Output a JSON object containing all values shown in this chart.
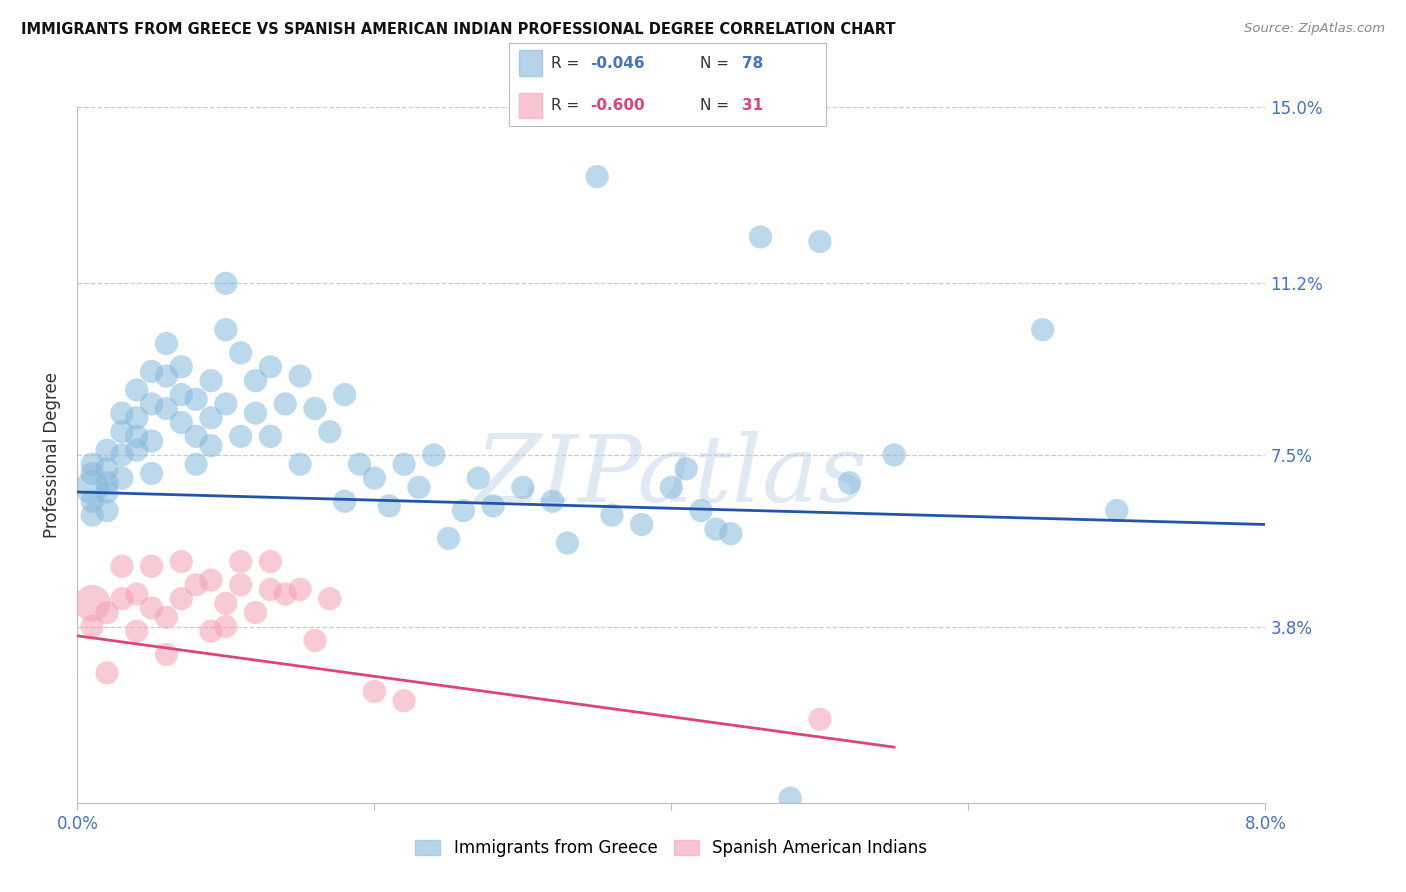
{
  "title": "IMMIGRANTS FROM GREECE VS SPANISH AMERICAN INDIAN PROFESSIONAL DEGREE CORRELATION CHART",
  "source": "Source: ZipAtlas.com",
  "ylabel": "Professional Degree",
  "xmin": 0.0,
  "xmax": 0.08,
  "ymin": 0.0,
  "ymax": 0.15,
  "ytick_vals": [
    0.038,
    0.075,
    0.112,
    0.15
  ],
  "ytick_labels": [
    "3.8%",
    "7.5%",
    "11.2%",
    "15.0%"
  ],
  "xtick_vals": [
    0.0,
    0.02,
    0.04,
    0.06,
    0.08
  ],
  "xtick_labels": [
    "0.0%",
    "",
    "",
    "",
    "8.0%"
  ],
  "legend1_r": "-0.046",
  "legend1_n": "78",
  "legend2_r": "-0.600",
  "legend2_n": "31",
  "legend_label1": "Immigrants from Greece",
  "legend_label2": "Spanish American Indians",
  "blue_color": "#85b8dc",
  "pink_color": "#f4a0b5",
  "line_blue": "#2255aa",
  "line_pink": "#dd4477",
  "watermark_text": "ZIPatlas",
  "blue_x": [
    0.001,
    0.001,
    0.001,
    0.001,
    0.001,
    0.002,
    0.002,
    0.002,
    0.002,
    0.002,
    0.003,
    0.003,
    0.003,
    0.003,
    0.004,
    0.004,
    0.004,
    0.004,
    0.005,
    0.005,
    0.005,
    0.005,
    0.006,
    0.006,
    0.006,
    0.007,
    0.007,
    0.007,
    0.008,
    0.008,
    0.008,
    0.009,
    0.009,
    0.009,
    0.01,
    0.01,
    0.01,
    0.011,
    0.011,
    0.012,
    0.012,
    0.013,
    0.013,
    0.014,
    0.015,
    0.015,
    0.016,
    0.017,
    0.018,
    0.018,
    0.019,
    0.02,
    0.021,
    0.022,
    0.023,
    0.024,
    0.025,
    0.026,
    0.027,
    0.028,
    0.03,
    0.032,
    0.033,
    0.035,
    0.036,
    0.038,
    0.04,
    0.041,
    0.042,
    0.043,
    0.044,
    0.046,
    0.048,
    0.05,
    0.052,
    0.055,
    0.065,
    0.07
  ],
  "blue_y": [
    0.068,
    0.073,
    0.065,
    0.071,
    0.062,
    0.069,
    0.076,
    0.063,
    0.072,
    0.067,
    0.08,
    0.075,
    0.084,
    0.07,
    0.089,
    0.079,
    0.083,
    0.076,
    0.093,
    0.086,
    0.078,
    0.071,
    0.099,
    0.092,
    0.085,
    0.088,
    0.082,
    0.094,
    0.087,
    0.079,
    0.073,
    0.091,
    0.083,
    0.077,
    0.112,
    0.102,
    0.086,
    0.097,
    0.079,
    0.091,
    0.084,
    0.094,
    0.079,
    0.086,
    0.092,
    0.073,
    0.085,
    0.08,
    0.088,
    0.065,
    0.073,
    0.07,
    0.064,
    0.073,
    0.068,
    0.075,
    0.057,
    0.063,
    0.07,
    0.064,
    0.068,
    0.065,
    0.056,
    0.135,
    0.062,
    0.06,
    0.068,
    0.072,
    0.063,
    0.059,
    0.058,
    0.122,
    0.001,
    0.121,
    0.069,
    0.075,
    0.102,
    0.063
  ],
  "pink_x": [
    0.001,
    0.001,
    0.002,
    0.002,
    0.003,
    0.003,
    0.004,
    0.004,
    0.005,
    0.005,
    0.006,
    0.006,
    0.007,
    0.007,
    0.008,
    0.009,
    0.009,
    0.01,
    0.01,
    0.011,
    0.011,
    0.012,
    0.013,
    0.013,
    0.014,
    0.015,
    0.016,
    0.017,
    0.02,
    0.022,
    0.05
  ],
  "pink_y": [
    0.043,
    0.038,
    0.041,
    0.028,
    0.051,
    0.044,
    0.045,
    0.037,
    0.051,
    0.042,
    0.032,
    0.04,
    0.052,
    0.044,
    0.047,
    0.037,
    0.048,
    0.043,
    0.038,
    0.052,
    0.047,
    0.041,
    0.052,
    0.046,
    0.045,
    0.046,
    0.035,
    0.044,
    0.024,
    0.022,
    0.018
  ],
  "blue_line_x": [
    0.0,
    0.08
  ],
  "blue_line_y": [
    0.067,
    0.06
  ],
  "pink_line_x": [
    0.0,
    0.055
  ],
  "pink_line_y": [
    0.036,
    0.012
  ]
}
